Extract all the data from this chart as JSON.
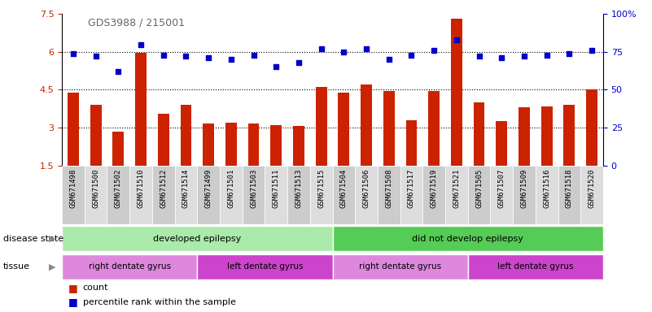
{
  "title": "GDS3988 / 215001",
  "samples": [
    "GSM671498",
    "GSM671500",
    "GSM671502",
    "GSM671510",
    "GSM671512",
    "GSM671514",
    "GSM671499",
    "GSM671501",
    "GSM671503",
    "GSM671511",
    "GSM671513",
    "GSM671515",
    "GSM671504",
    "GSM671506",
    "GSM671508",
    "GSM671517",
    "GSM671519",
    "GSM671521",
    "GSM671505",
    "GSM671507",
    "GSM671509",
    "GSM671516",
    "GSM671518",
    "GSM671520"
  ],
  "counts": [
    4.4,
    3.9,
    2.85,
    5.95,
    3.55,
    3.9,
    3.15,
    3.2,
    3.15,
    3.1,
    3.05,
    4.6,
    4.4,
    4.7,
    4.45,
    3.3,
    4.45,
    7.3,
    4.0,
    3.25,
    3.8,
    3.85,
    3.9,
    4.5
  ],
  "percentiles": [
    74,
    72,
    62,
    80,
    73,
    72,
    71,
    70,
    73,
    65,
    68,
    77,
    75,
    77,
    70,
    73,
    76,
    83,
    72,
    71,
    72,
    73,
    74,
    76
  ],
  "bar_color": "#cc2200",
  "dot_color": "#0000cc",
  "ylim_left": [
    1.5,
    7.5
  ],
  "ylim_right": [
    0,
    100
  ],
  "yticks_left": [
    1.5,
    3.0,
    4.5,
    6.0,
    7.5
  ],
  "yticks_left_labels": [
    "1.5",
    "3",
    "4.5",
    "6",
    "7.5"
  ],
  "yticks_right": [
    0,
    25,
    50,
    75,
    100
  ],
  "yticks_right_labels": [
    "0",
    "25",
    "50",
    "75",
    "100%"
  ],
  "disease_state_groups": [
    {
      "label": "developed epilepsy",
      "start": 0,
      "end": 11,
      "color": "#aaeaaa"
    },
    {
      "label": "did not develop epilepsy",
      "start": 12,
      "end": 23,
      "color": "#55cc55"
    }
  ],
  "tissue_groups": [
    {
      "label": "right dentate gyrus",
      "start": 0,
      "end": 5,
      "color": "#dd88dd"
    },
    {
      "label": "left dentate gyrus",
      "start": 6,
      "end": 11,
      "color": "#cc44cc"
    },
    {
      "label": "right dentate gyrus",
      "start": 12,
      "end": 17,
      "color": "#dd88dd"
    },
    {
      "label": "left dentate gyrus",
      "start": 18,
      "end": 23,
      "color": "#cc44cc"
    }
  ],
  "legend_count_label": "count",
  "legend_pct_label": "percentile rank within the sample",
  "background_color": "#ffffff",
  "bar_width": 0.5,
  "dot_size": 20,
  "cell_bg_odd": "#cccccc",
  "cell_bg_even": "#dddddd"
}
